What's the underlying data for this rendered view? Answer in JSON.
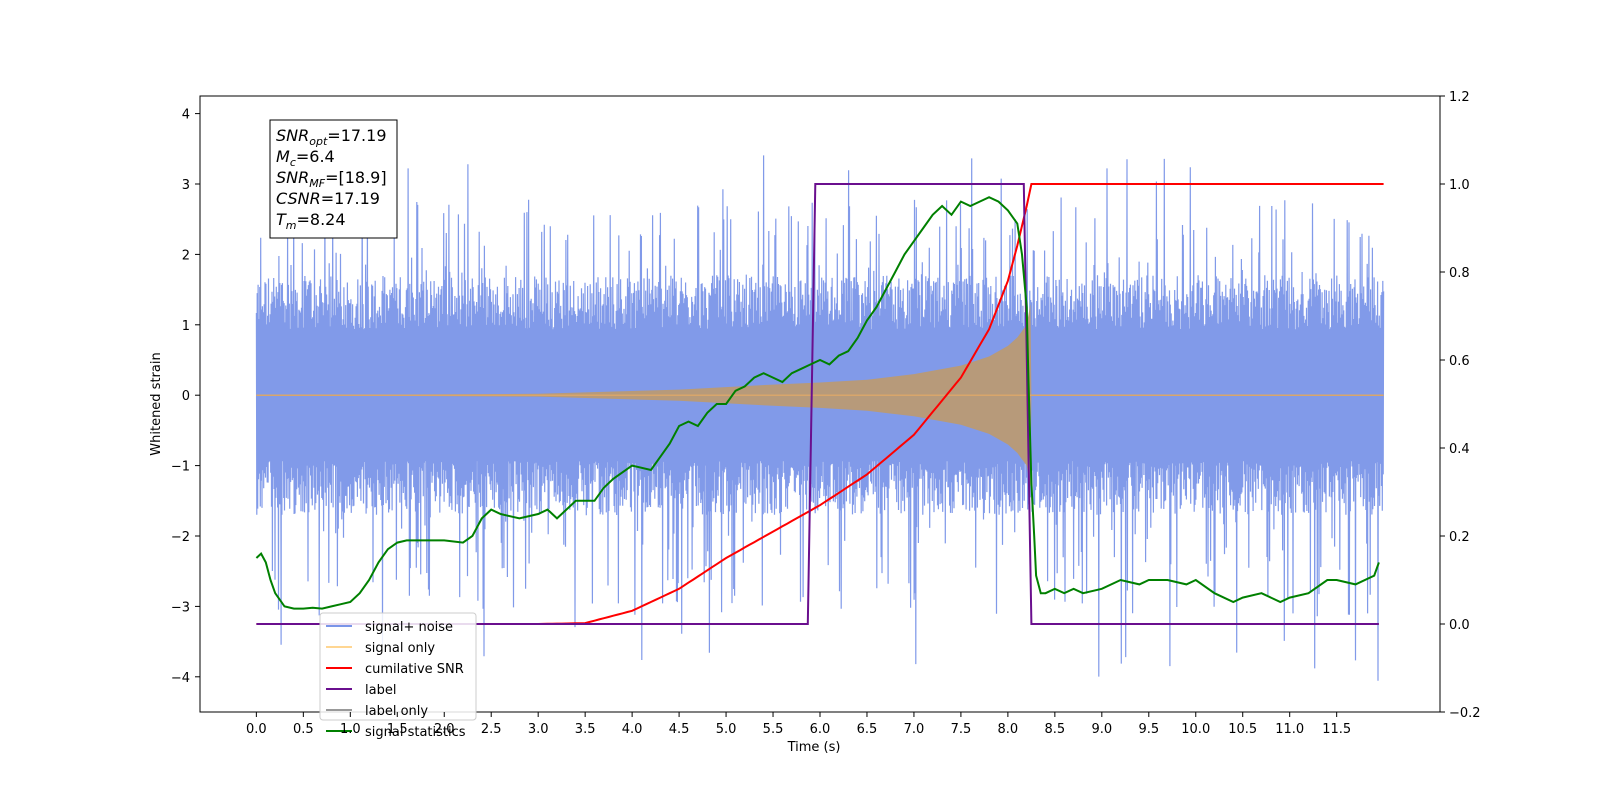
{
  "chart_data": {
    "type": "line",
    "xlabel": "Time (s)",
    "ylabel": "Whitened strain",
    "xlim": [
      -0.6,
      12.6
    ],
    "ylim_left": [
      -4.5,
      4.25
    ],
    "ylim_right": [
      -0.2,
      1.2
    ],
    "x_ticks": [
      0.0,
      0.5,
      1.0,
      1.5,
      2.0,
      2.5,
      3.0,
      3.5,
      4.0,
      4.5,
      5.0,
      5.5,
      6.0,
      6.5,
      7.0,
      7.5,
      8.0,
      8.5,
      9.0,
      9.5,
      10.0,
      10.5,
      11.0,
      11.5
    ],
    "x_tick_labels": [
      "0.0",
      "0.5",
      "1.0",
      "1.5",
      "2.0",
      "2.5",
      "3.0",
      "3.5",
      "4.0",
      "4.5",
      "5.0",
      "5.5",
      "6.0",
      "6.5",
      "7.0",
      "7.5",
      "8.0",
      "8.5",
      "9.0",
      "9.5",
      "10.0",
      "10.5",
      "11.0",
      "11.5"
    ],
    "y_left_ticks": [
      -4,
      -3,
      -2,
      -1,
      0,
      1,
      2,
      3,
      4
    ],
    "y_left_tick_labels": [
      "−4",
      "−3",
      "−2",
      "−1",
      "0",
      "1",
      "2",
      "3",
      "4"
    ],
    "y_right_ticks": [
      -0.2,
      0.0,
      0.2,
      0.4,
      0.6,
      0.8,
      1.0,
      1.2
    ],
    "y_right_tick_labels": [
      "−0.2",
      "0.0",
      "0.2",
      "0.4",
      "0.6",
      "0.8",
      "1.0",
      "1.2"
    ],
    "grid": false,
    "legend_position": "lower-left",
    "annotation": [
      {
        "symbol": "SNR",
        "sub": "opt",
        "value": "=17.19"
      },
      {
        "symbol": "M",
        "sub": "c",
        "value": "=6.4"
      },
      {
        "symbol": "SNR",
        "sub": "MF",
        "value": "=[18.9]"
      },
      {
        "symbol": "CSNR",
        "sub": "",
        "value": "=17.19"
      },
      {
        "symbol": "T",
        "sub": "m",
        "value": "=8.24"
      }
    ],
    "series": [
      {
        "name": "signal+ noise",
        "axis": "left",
        "color": "#7a95e8",
        "render": "noise band",
        "x_range": [
          0.0,
          12.0
        ],
        "typical_range": [
          -1.7,
          1.7
        ],
        "extreme_range": [
          -4.1,
          3.6
        ]
      },
      {
        "name": "signal only",
        "axis": "left",
        "color": "#f5c77a",
        "render": "chirp envelope",
        "envelope": {
          "x": [
            0.0,
            3.0,
            4.5,
            5.5,
            6.0,
            6.5,
            7.0,
            7.5,
            7.8,
            8.0,
            8.1,
            8.2,
            8.24,
            8.25,
            12.0
          ],
          "amplitude": [
            0.0,
            0.02,
            0.08,
            0.15,
            0.18,
            0.22,
            0.3,
            0.42,
            0.55,
            0.7,
            0.82,
            1.0,
            1.3,
            0.0,
            0.0
          ]
        }
      },
      {
        "name": "cumilative SNR",
        "axis": "right",
        "color": "#ff0000",
        "x": [
          0.0,
          2.0,
          3.0,
          3.5,
          4.0,
          4.5,
          5.0,
          5.5,
          6.0,
          6.5,
          7.0,
          7.5,
          7.8,
          8.0,
          8.1,
          8.2,
          8.25,
          8.3,
          12.0
        ],
        "y": [
          0.0,
          0.0,
          0.0,
          0.002,
          0.03,
          0.08,
          0.15,
          0.21,
          0.27,
          0.34,
          0.43,
          0.56,
          0.67,
          0.78,
          0.86,
          0.95,
          1.0,
          1.0,
          1.0
        ]
      },
      {
        "name": "label",
        "axis": "right",
        "color": "#6a0f8e",
        "x": [
          0.0,
          5.87,
          5.95,
          8.17,
          8.25,
          11.95
        ],
        "y": [
          0.0,
          0.0,
          1.0,
          1.0,
          0.0,
          0.0
        ]
      },
      {
        "name": "label only",
        "axis": "right",
        "color": "#999999",
        "x": [],
        "y": []
      },
      {
        "name": "signal statistics",
        "axis": "right",
        "color": "#008000",
        "x": [
          0.0,
          0.05,
          0.1,
          0.15,
          0.2,
          0.3,
          0.4,
          0.5,
          0.6,
          0.7,
          0.8,
          0.9,
          1.0,
          1.1,
          1.2,
          1.3,
          1.4,
          1.5,
          1.6,
          1.8,
          2.0,
          2.2,
          2.3,
          2.4,
          2.5,
          2.6,
          2.8,
          3.0,
          3.1,
          3.2,
          3.4,
          3.6,
          3.7,
          3.8,
          4.0,
          4.2,
          4.3,
          4.4,
          4.5,
          4.6,
          4.7,
          4.8,
          4.9,
          5.0,
          5.1,
          5.2,
          5.3,
          5.4,
          5.5,
          5.6,
          5.7,
          5.8,
          5.9,
          6.0,
          6.1,
          6.2,
          6.3,
          6.4,
          6.5,
          6.6,
          6.7,
          6.8,
          6.9,
          7.0,
          7.1,
          7.2,
          7.3,
          7.4,
          7.5,
          7.6,
          7.7,
          7.8,
          7.9,
          8.0,
          8.1,
          8.15,
          8.2,
          8.22,
          8.25,
          8.28,
          8.3,
          8.35,
          8.4,
          8.5,
          8.6,
          8.7,
          8.8,
          9.0,
          9.2,
          9.4,
          9.5,
          9.7,
          9.9,
          10.0,
          10.2,
          10.4,
          10.5,
          10.7,
          10.9,
          11.0,
          11.2,
          11.4,
          11.5,
          11.7,
          11.9,
          11.95
        ],
        "y": [
          0.15,
          0.16,
          0.14,
          0.1,
          0.07,
          0.04,
          0.035,
          0.035,
          0.037,
          0.035,
          0.04,
          0.045,
          0.05,
          0.07,
          0.1,
          0.14,
          0.17,
          0.185,
          0.19,
          0.19,
          0.19,
          0.185,
          0.2,
          0.24,
          0.26,
          0.25,
          0.24,
          0.25,
          0.26,
          0.24,
          0.28,
          0.28,
          0.31,
          0.33,
          0.36,
          0.35,
          0.38,
          0.41,
          0.45,
          0.46,
          0.45,
          0.48,
          0.5,
          0.5,
          0.53,
          0.54,
          0.56,
          0.57,
          0.56,
          0.55,
          0.57,
          0.58,
          0.59,
          0.6,
          0.59,
          0.61,
          0.62,
          0.65,
          0.69,
          0.72,
          0.76,
          0.8,
          0.84,
          0.87,
          0.9,
          0.93,
          0.95,
          0.93,
          0.96,
          0.95,
          0.96,
          0.97,
          0.96,
          0.94,
          0.91,
          0.84,
          0.72,
          0.55,
          0.32,
          0.2,
          0.11,
          0.07,
          0.07,
          0.08,
          0.07,
          0.08,
          0.07,
          0.08,
          0.1,
          0.09,
          0.1,
          0.1,
          0.09,
          0.1,
          0.07,
          0.05,
          0.06,
          0.07,
          0.05,
          0.06,
          0.07,
          0.1,
          0.1,
          0.09,
          0.11,
          0.14
        ]
      }
    ]
  }
}
